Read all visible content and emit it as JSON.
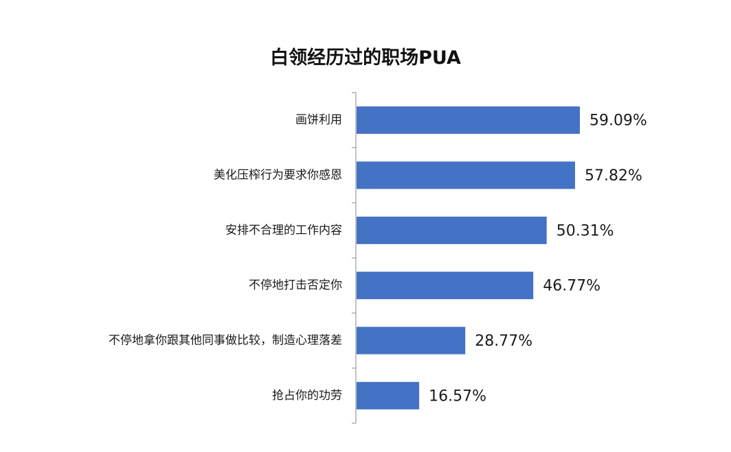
{
  "chart_data": {
    "type": "bar",
    "orientation": "horizontal",
    "title": "白领经历过的职场PUA",
    "categories": [
      "画饼利用",
      "美化压榨行为要求你感恩",
      "安排不合理的工作内容",
      "不停地打击否定你",
      "不停地拿你跟其他同事做比较，制造心理落差",
      "抢占你的功劳"
    ],
    "values": [
      59.09,
      57.82,
      50.31,
      46.77,
      28.77,
      16.57
    ],
    "value_labels": [
      "59.09%",
      "57.82%",
      "50.31%",
      "46.77%",
      "28.77%",
      "16.57%"
    ],
    "unit": "%",
    "bar_color": "#4472C4",
    "grid": false,
    "legend": "none"
  }
}
